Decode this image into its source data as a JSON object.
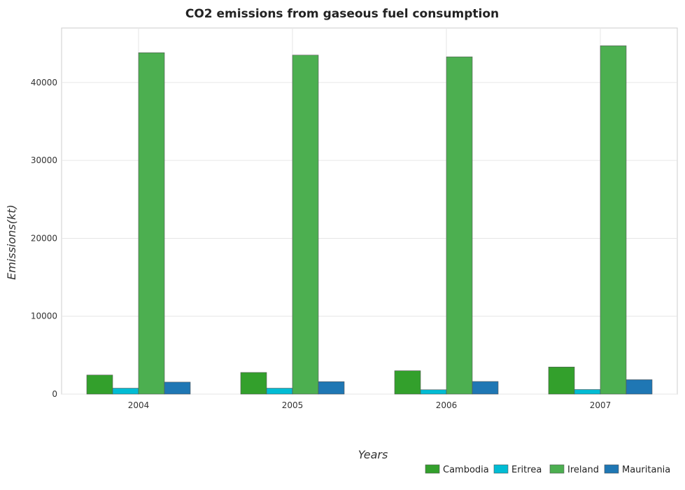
{
  "chart_data": {
    "type": "bar",
    "title": "CO2 emissions from gaseous fuel consumption",
    "xlabel": "Years",
    "ylabel": "Emissions(kt)",
    "categories": [
      "2004",
      "2005",
      "2006",
      "2007"
    ],
    "ylim": [
      0,
      47000
    ],
    "yticks": [
      0,
      10000,
      20000,
      30000,
      40000
    ],
    "ytick_labels": [
      "0",
      "10000",
      "20000",
      "30000",
      "40000"
    ],
    "grid": true,
    "legend_position": "bottom-right",
    "series": [
      {
        "name": "Cambodia",
        "color": "#33a02c",
        "values": [
          2450,
          2780,
          3000,
          3480
        ]
      },
      {
        "name": "Eritrea",
        "color": "#00bcd4",
        "values": [
          760,
          760,
          560,
          590
        ]
      },
      {
        "name": "Ireland",
        "color": "#4caf50",
        "values": [
          43830,
          43520,
          43300,
          44720
        ]
      },
      {
        "name": "Mauritania",
        "color": "#1f77b4",
        "values": [
          1540,
          1600,
          1620,
          1850
        ]
      }
    ]
  }
}
